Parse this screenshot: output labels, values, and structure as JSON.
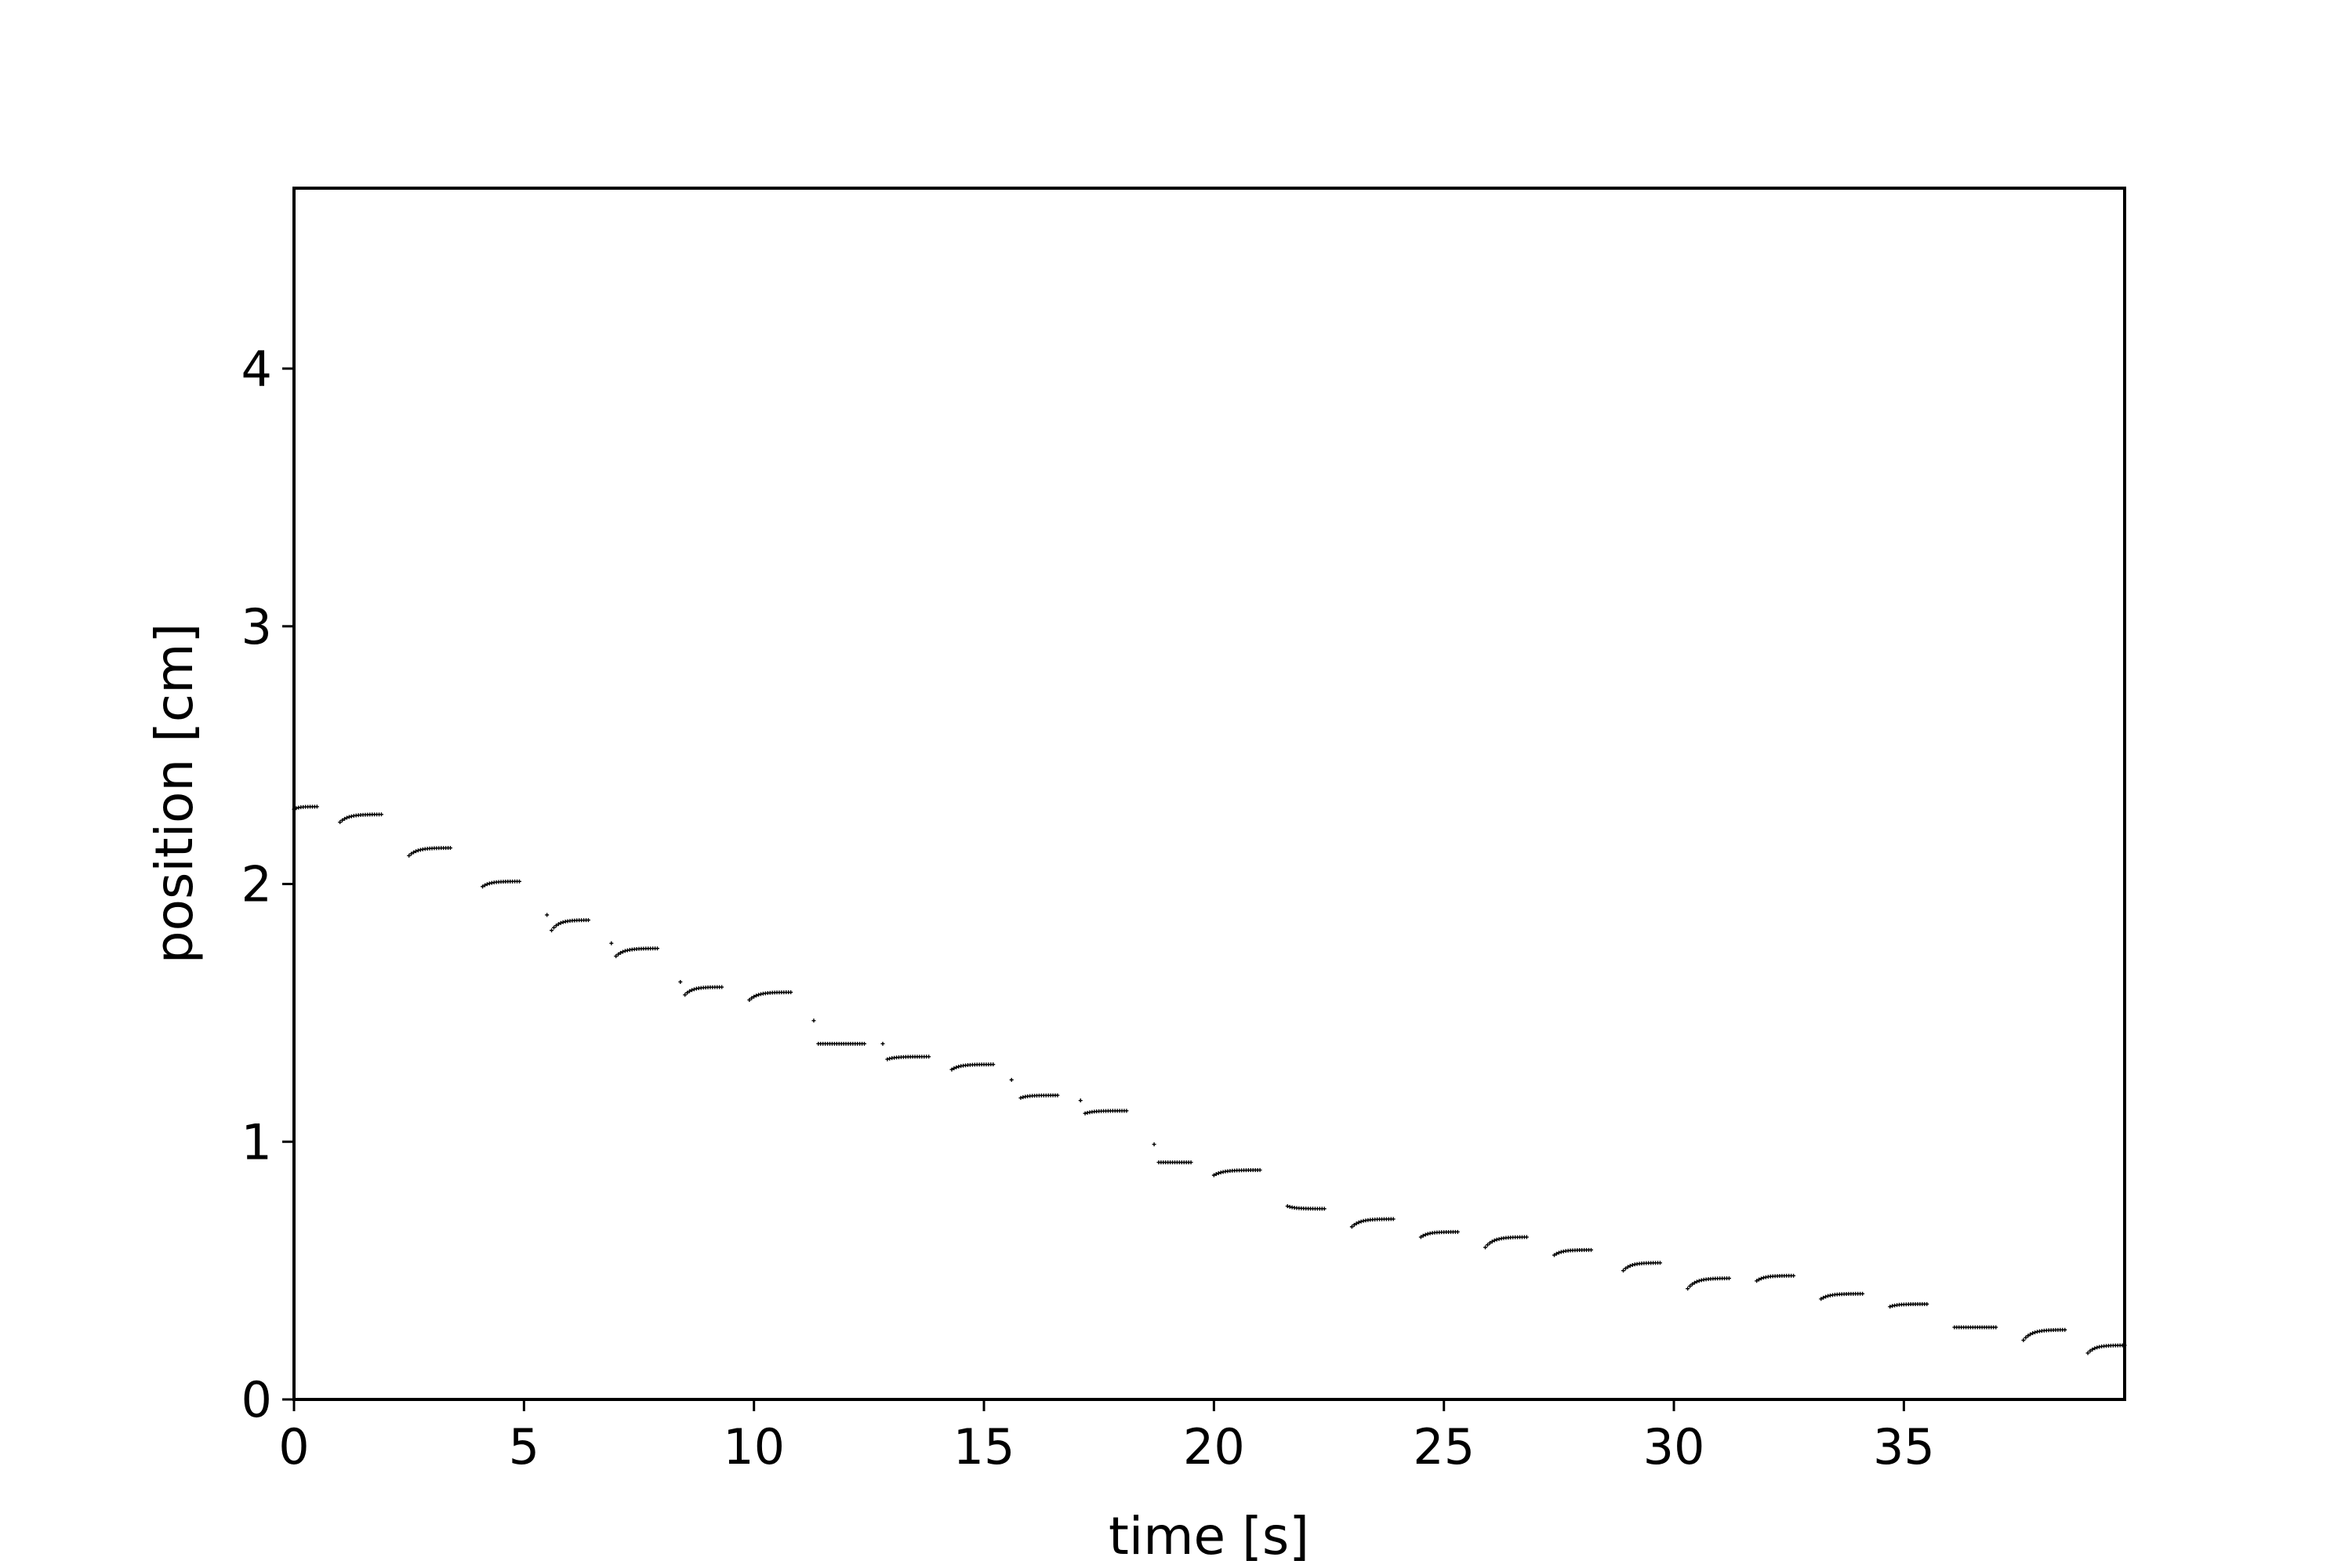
{
  "chart_data": {
    "type": "scatter",
    "xlabel": "time [s]",
    "ylabel": "position [cm]",
    "xlim": [
      0,
      39.8
    ],
    "ylim": [
      0,
      4.7
    ],
    "xticks": [
      0,
      5,
      10,
      15,
      20,
      25,
      30,
      35
    ],
    "yticks": [
      0,
      1,
      2,
      3,
      4
    ],
    "grid": false,
    "legend": "none",
    "marker_color": "#000000",
    "segments": [
      {
        "t0": 0.0,
        "t1": 0.5,
        "y_start": 2.29,
        "y_end": 2.3
      },
      {
        "t0": 1.0,
        "t1": 1.9,
        "y_start": 2.24,
        "y_end": 2.27
      },
      {
        "t0": 2.5,
        "t1": 3.4,
        "y_start": 2.11,
        "y_end": 2.14
      },
      {
        "t0": 4.1,
        "t1": 4.9,
        "y_start": 1.99,
        "y_end": 2.01
      },
      {
        "t0": 5.6,
        "t1": 6.4,
        "y_start": 1.82,
        "y_end": 1.86
      },
      {
        "t0": 7.0,
        "t1": 7.9,
        "y_start": 1.72,
        "y_end": 1.75
      },
      {
        "t0": 8.5,
        "t1": 9.3,
        "y_start": 1.57,
        "y_end": 1.6
      },
      {
        "t0": 9.9,
        "t1": 10.8,
        "y_start": 1.55,
        "y_end": 1.58
      },
      {
        "t0": 11.4,
        "t1": 12.4,
        "y_start": 1.38,
        "y_end": 1.38
      },
      {
        "t0": 12.9,
        "t1": 13.8,
        "y_start": 1.32,
        "y_end": 1.33
      },
      {
        "t0": 14.3,
        "t1": 15.2,
        "y_start": 1.28,
        "y_end": 1.3
      },
      {
        "t0": 15.8,
        "t1": 16.6,
        "y_start": 1.17,
        "y_end": 1.18
      },
      {
        "t0": 17.2,
        "t1": 18.1,
        "y_start": 1.11,
        "y_end": 1.12
      },
      {
        "t0": 18.8,
        "t1": 19.5,
        "y_start": 0.92,
        "y_end": 0.92
      },
      {
        "t0": 20.0,
        "t1": 21.0,
        "y_start": 0.87,
        "y_end": 0.89
      },
      {
        "t0": 21.6,
        "t1": 22.4,
        "y_start": 0.75,
        "y_end": 0.74
      },
      {
        "t0": 23.0,
        "t1": 23.9,
        "y_start": 0.67,
        "y_end": 0.7
      },
      {
        "t0": 24.5,
        "t1": 25.3,
        "y_start": 0.63,
        "y_end": 0.65
      },
      {
        "t0": 25.9,
        "t1": 26.8,
        "y_start": 0.59,
        "y_end": 0.63
      },
      {
        "t0": 27.4,
        "t1": 28.2,
        "y_start": 0.56,
        "y_end": 0.58
      },
      {
        "t0": 28.9,
        "t1": 29.7,
        "y_start": 0.5,
        "y_end": 0.53
      },
      {
        "t0": 30.3,
        "t1": 31.2,
        "y_start": 0.43,
        "y_end": 0.47
      },
      {
        "t0": 31.8,
        "t1": 32.6,
        "y_start": 0.46,
        "y_end": 0.48
      },
      {
        "t0": 33.2,
        "t1": 34.1,
        "y_start": 0.39,
        "y_end": 0.41
      },
      {
        "t0": 34.7,
        "t1": 35.5,
        "y_start": 0.36,
        "y_end": 0.37
      },
      {
        "t0": 36.1,
        "t1": 37.0,
        "y_start": 0.28,
        "y_end": 0.28
      },
      {
        "t0": 37.6,
        "t1": 38.5,
        "y_start": 0.23,
        "y_end": 0.27
      },
      {
        "t0": 39.0,
        "t1": 39.8,
        "y_start": 0.18,
        "y_end": 0.21
      }
    ],
    "outliers": [
      {
        "x": 5.5,
        "y": 1.88
      },
      {
        "x": 6.9,
        "y": 1.77
      },
      {
        "x": 8.4,
        "y": 1.62
      },
      {
        "x": 11.3,
        "y": 1.47
      },
      {
        "x": 12.8,
        "y": 1.38
      },
      {
        "x": 15.6,
        "y": 1.24
      },
      {
        "x": 17.1,
        "y": 1.16
      },
      {
        "x": 18.7,
        "y": 0.99
      }
    ]
  }
}
